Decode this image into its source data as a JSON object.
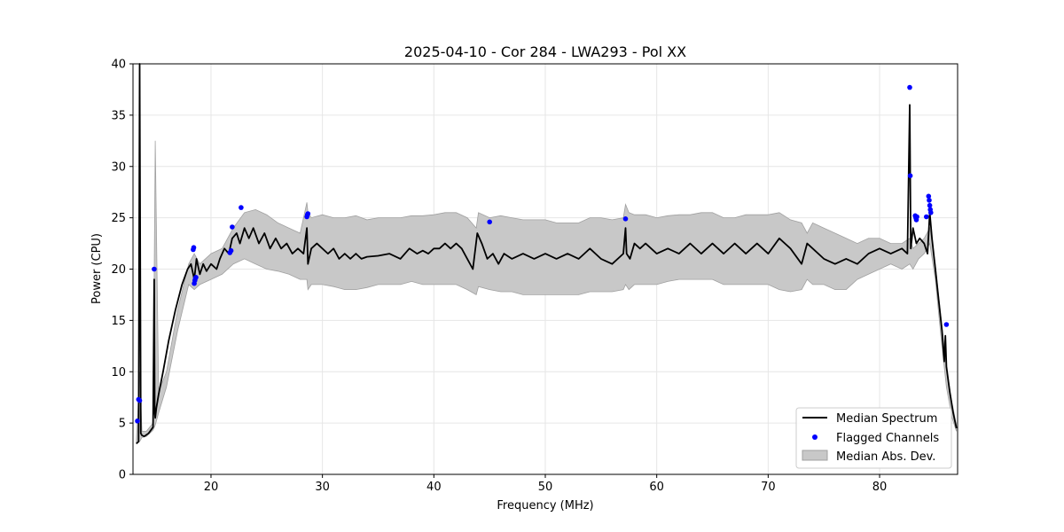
{
  "chart_data": {
    "type": "line",
    "title": "2025-04-10 - Cor 284 - LWA293 - Pol XX",
    "xlabel": "Frequency (MHz)",
    "ylabel": "Power (CPU)",
    "xlim": [
      13,
      87
    ],
    "ylim": [
      0,
      40
    ],
    "xticks": [
      "20",
      "30",
      "40",
      "50",
      "60",
      "70",
      "80"
    ],
    "yticks": [
      "0",
      "5",
      "10",
      "15",
      "20",
      "25",
      "30",
      "35",
      "40"
    ],
    "grid": true,
    "legend_position": "lower-right",
    "legend": [
      "Median Spectrum",
      "Flagged Channels",
      "Median Abs. Dev."
    ],
    "colors": {
      "median": "#000000",
      "flagged": "#0000ff",
      "mad_fill": "#c8c8c8",
      "mad_edge": "#a0a0a0",
      "grid": "#e6e6e6"
    },
    "series": [
      {
        "name": "Median Spectrum",
        "x": [
          13.3,
          13.5,
          13.6,
          13.7,
          13.8,
          14.0,
          14.4,
          14.8,
          14.9,
          14.95,
          15.0,
          15.1,
          15.3,
          15.7,
          16.2,
          16.8,
          17.4,
          17.9,
          18.2,
          18.5,
          18.7,
          19.0,
          19.3,
          19.6,
          20.0,
          20.5,
          20.8,
          21.2,
          21.6,
          21.9,
          22.3,
          22.6,
          23.0,
          23.4,
          23.8,
          24.3,
          24.8,
          25.3,
          25.8,
          26.3,
          26.8,
          27.3,
          27.8,
          28.3,
          28.6,
          28.7,
          29.0,
          29.5,
          30.0,
          30.5,
          31.0,
          31.5,
          32.0,
          32.5,
          33.0,
          33.5,
          34.0,
          35.0,
          36.0,
          37.0,
          37.8,
          38.5,
          39.0,
          39.5,
          40.0,
          40.5,
          41.0,
          41.5,
          42.0,
          42.5,
          43.0,
          43.5,
          43.9,
          44.3,
          44.8,
          45.3,
          45.8,
          46.3,
          47.0,
          48.0,
          49.0,
          50.0,
          51.0,
          52.0,
          53.0,
          53.5,
          54.0,
          55.0,
          56.0,
          57.0,
          57.2,
          57.3,
          57.6,
          58.0,
          58.5,
          59.0,
          60.0,
          61.0,
          62.0,
          63.0,
          64.0,
          65.0,
          66.0,
          67.0,
          68.0,
          69.0,
          70.0,
          71.0,
          72.0,
          73.0,
          73.5,
          74.0,
          75.0,
          76.0,
          77.0,
          78.0,
          79.0,
          80.0,
          81.0,
          82.0,
          82.5,
          82.7,
          82.8,
          83.0,
          83.3,
          83.6,
          84.0,
          84.3,
          84.5,
          84.7,
          85.0,
          85.3,
          85.6,
          85.8,
          85.9,
          86.0,
          86.3,
          86.6,
          86.9
        ],
        "values": [
          3.0,
          3.2,
          40.0,
          4.0,
          3.8,
          3.7,
          4.0,
          4.6,
          19.0,
          6.0,
          5.5,
          6.5,
          7.8,
          10.0,
          13.0,
          16.0,
          18.5,
          20.0,
          20.5,
          19.0,
          21.0,
          19.5,
          20.5,
          19.8,
          20.5,
          20.0,
          21.0,
          22.0,
          21.5,
          23.0,
          23.5,
          22.5,
          24.0,
          23.0,
          24.0,
          22.5,
          23.5,
          22.0,
          23.0,
          22.0,
          22.5,
          21.5,
          22.0,
          21.5,
          24.0,
          20.5,
          22.0,
          22.5,
          22.0,
          21.5,
          22.0,
          21.0,
          21.5,
          21.0,
          21.5,
          21.0,
          21.2,
          21.3,
          21.5,
          21.0,
          22.0,
          21.5,
          21.8,
          21.5,
          22.0,
          22.0,
          22.5,
          22.0,
          22.5,
          22.0,
          21.0,
          20.0,
          23.5,
          22.5,
          21.0,
          21.5,
          20.5,
          21.5,
          21.0,
          21.5,
          21.0,
          21.5,
          21.0,
          21.5,
          21.0,
          21.5,
          22.0,
          21.0,
          20.5,
          21.5,
          24.0,
          21.5,
          21.0,
          22.5,
          22.0,
          22.5,
          21.5,
          22.0,
          21.5,
          22.5,
          21.5,
          22.5,
          21.5,
          22.5,
          21.5,
          22.5,
          21.5,
          23.0,
          22.0,
          20.5,
          22.5,
          22.0,
          21.0,
          20.5,
          21.0,
          20.5,
          21.5,
          22.0,
          21.5,
          22.0,
          21.5,
          36.0,
          22.0,
          24.0,
          22.5,
          23.0,
          22.5,
          21.5,
          25.5,
          23.0,
          20.0,
          17.0,
          14.0,
          11.0,
          13.5,
          10.5,
          8.0,
          6.0,
          4.5
        ]
      },
      {
        "name": "Median Abs. Dev.",
        "x": [
          13.3,
          13.6,
          13.8,
          14.2,
          14.8,
          15.0,
          15.3,
          16.0,
          17.0,
          18.0,
          18.5,
          19.0,
          20.0,
          21.0,
          22.0,
          23.0,
          24.0,
          25.0,
          26.0,
          27.0,
          28.0,
          28.6,
          28.7,
          29.0,
          30.0,
          31.0,
          32.0,
          33.0,
          34.0,
          35.0,
          36.0,
          37.0,
          38.0,
          39.0,
          40.0,
          41.0,
          42.0,
          43.0,
          43.8,
          44.0,
          45.0,
          46.0,
          47.0,
          48.0,
          49.0,
          50.0,
          51.0,
          52.0,
          53.0,
          54.0,
          55.0,
          56.0,
          57.0,
          57.2,
          57.5,
          58.0,
          59.0,
          60.0,
          61.0,
          62.0,
          63.0,
          64.0,
          65.0,
          66.0,
          67.0,
          68.0,
          69.0,
          70.0,
          71.0,
          72.0,
          73.0,
          73.5,
          74.0,
          75.0,
          76.0,
          77.0,
          78.0,
          79.0,
          80.0,
          81.0,
          82.0,
          82.7,
          83.0,
          83.5,
          84.0,
          84.5,
          85.0,
          85.5,
          86.0,
          86.5,
          86.9
        ],
        "upper": [
          3.2,
          10.0,
          4.2,
          4.2,
          5.0,
          32.5,
          8.0,
          10.0,
          16.0,
          20.5,
          21.5,
          20.5,
          21.5,
          22.0,
          24.0,
          25.5,
          25.8,
          25.3,
          24.5,
          24.0,
          23.5,
          26.5,
          25.5,
          25.0,
          25.3,
          25.0,
          25.0,
          25.2,
          24.8,
          25.0,
          25.0,
          25.0,
          25.2,
          25.2,
          25.3,
          25.5,
          25.5,
          25.0,
          24.0,
          25.5,
          25.0,
          25.2,
          25.0,
          24.8,
          24.8,
          24.8,
          24.5,
          24.5,
          24.5,
          25.0,
          25.0,
          24.8,
          25.0,
          26.3,
          25.5,
          25.3,
          25.3,
          25.0,
          25.2,
          25.3,
          25.3,
          25.5,
          25.5,
          25.0,
          25.0,
          25.3,
          25.3,
          25.3,
          25.5,
          24.8,
          24.5,
          23.5,
          24.5,
          24.0,
          23.5,
          23.0,
          22.5,
          23.0,
          23.0,
          22.5,
          22.5,
          23.0,
          22.0,
          22.5,
          23.0,
          24.0,
          20.5,
          15.5,
          10.5,
          7.0,
          4.8
        ],
        "lower": [
          3.0,
          3.2,
          3.6,
          3.7,
          4.3,
          4.8,
          6.0,
          8.5,
          14.0,
          18.5,
          18.0,
          18.5,
          19.0,
          19.5,
          20.5,
          21.0,
          20.5,
          20.0,
          19.8,
          19.5,
          19.0,
          19.0,
          18.0,
          18.5,
          18.5,
          18.3,
          18.0,
          18.0,
          18.2,
          18.5,
          18.5,
          18.5,
          18.8,
          18.5,
          18.5,
          18.5,
          18.5,
          18.0,
          17.5,
          18.3,
          18.0,
          17.8,
          17.8,
          17.5,
          17.5,
          17.5,
          17.5,
          17.5,
          17.5,
          17.8,
          17.8,
          17.8,
          18.0,
          18.5,
          18.0,
          18.5,
          18.5,
          18.5,
          18.8,
          19.0,
          19.0,
          19.0,
          19.0,
          18.5,
          18.5,
          18.5,
          18.5,
          18.5,
          18.0,
          17.8,
          18.0,
          19.0,
          18.5,
          18.5,
          18.0,
          18.0,
          19.0,
          19.5,
          20.0,
          20.5,
          20.0,
          20.5,
          20.0,
          21.0,
          21.5,
          22.5,
          19.0,
          13.5,
          8.5,
          5.5,
          4.2
        ]
      },
      {
        "name": "Flagged Channels",
        "x": [
          13.4,
          13.5,
          13.6,
          14.9,
          18.4,
          18.45,
          18.5,
          18.55,
          18.6,
          18.65,
          21.7,
          21.8,
          21.9,
          22.7,
          28.6,
          28.65,
          28.7,
          45.0,
          57.2,
          82.7,
          82.75,
          83.2,
          83.25,
          83.3,
          83.35,
          84.2,
          84.4,
          84.45,
          84.5,
          84.55,
          84.6,
          86.0
        ],
        "values": [
          5.2,
          7.3,
          7.2,
          20.0,
          21.9,
          22.1,
          18.6,
          18.9,
          19.1,
          19.2,
          21.6,
          21.8,
          24.1,
          26.0,
          25.1,
          25.3,
          25.4,
          24.6,
          24.9,
          37.7,
          29.1,
          25.2,
          25.0,
          24.8,
          25.1,
          25.1,
          27.1,
          26.7,
          26.2,
          25.8,
          25.5,
          14.6
        ]
      }
    ]
  }
}
